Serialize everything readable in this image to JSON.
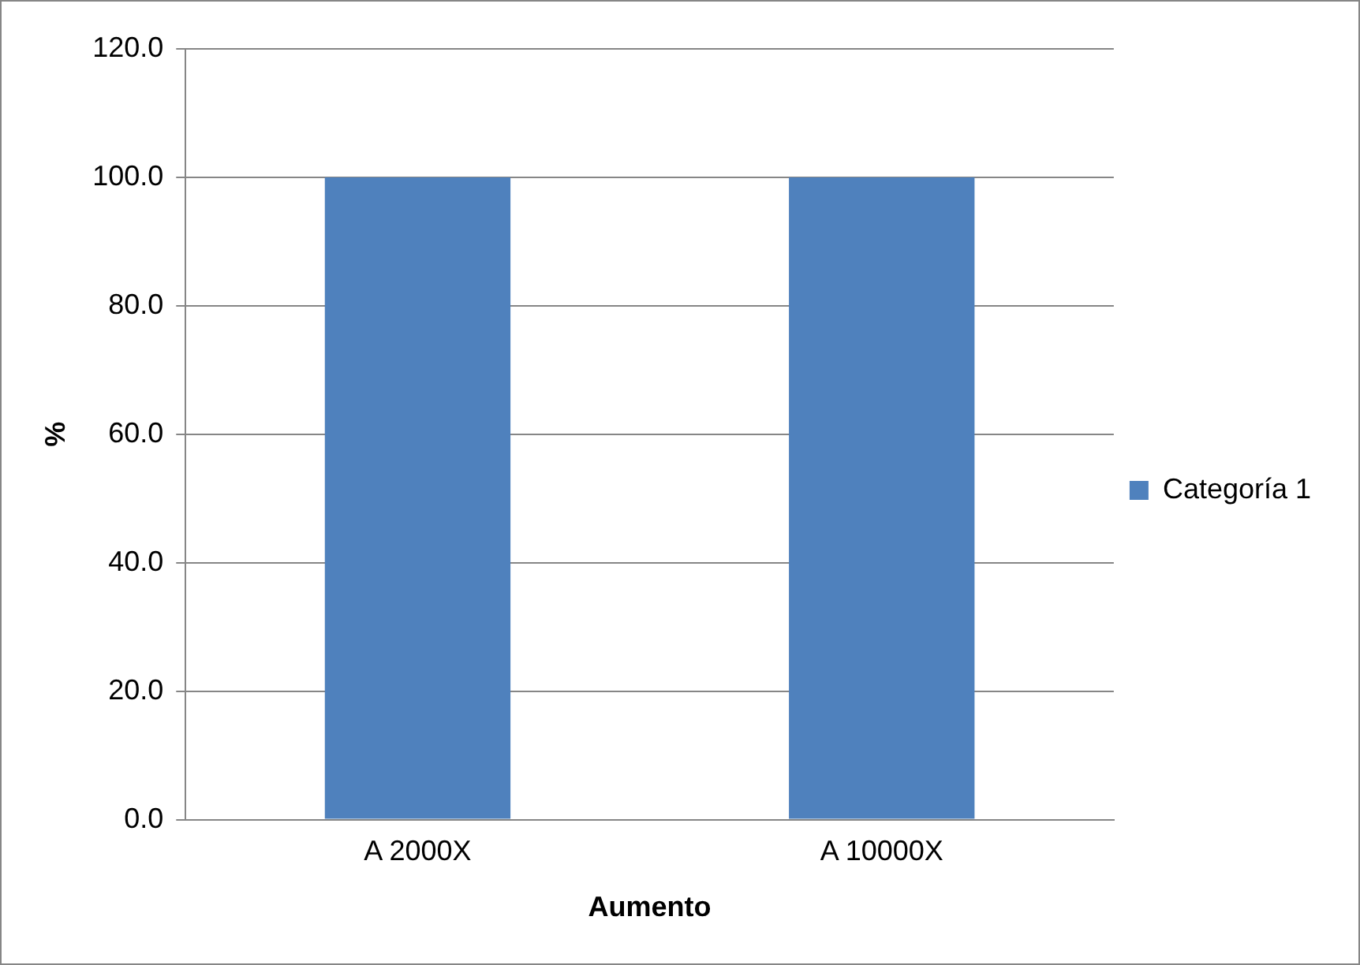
{
  "chart_data": {
    "type": "bar",
    "xlabel": "Aumento",
    "ylabel": "%",
    "categories": [
      "A 2000X",
      "A 10000X"
    ],
    "series": [
      {
        "name": "Categoría 1",
        "color": "#4f81bd",
        "values": [
          100,
          100
        ]
      }
    ],
    "ylim": [
      0,
      120
    ],
    "yticks": [
      {
        "value": 0,
        "label": "0.0"
      },
      {
        "value": 20,
        "label": "20.0"
      },
      {
        "value": 40,
        "label": "40.0"
      },
      {
        "value": 60,
        "label": "60.0"
      },
      {
        "value": 80,
        "label": "80.0"
      },
      {
        "value": 100,
        "label": "100.0"
      },
      {
        "value": 120,
        "label": "120.0"
      }
    ],
    "grid": "y",
    "legend": "right"
  }
}
